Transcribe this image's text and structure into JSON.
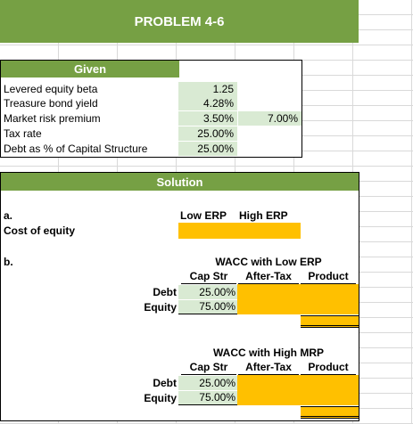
{
  "title": "PROBLEM 4-6",
  "given": {
    "header": "Given",
    "rows": [
      {
        "label": "Levered equity beta",
        "value": "1.25"
      },
      {
        "label": "Treasure bond yield",
        "value": "4.28%"
      },
      {
        "label": "Market risk premium",
        "value": "3.50%",
        "value2": "7.00%"
      },
      {
        "label": "Tax rate",
        "value": "25.00%"
      },
      {
        "label": "Debt as % of Capital Structure",
        "value": "25.00%"
      }
    ]
  },
  "solution": {
    "header": "Solution",
    "part_a": {
      "label": "a.",
      "col1": "Low ERP",
      "col2": "High ERP",
      "row_label": "Cost of equity"
    },
    "part_b": {
      "label": "b.",
      "table1": {
        "title": "WACC with Low ERP",
        "cols": [
          "Cap Str",
          "After-Tax",
          "Product"
        ],
        "rows": [
          {
            "label": "Debt",
            "cap_str": "25.00%"
          },
          {
            "label": "Equity",
            "cap_str": "75.00%"
          }
        ]
      },
      "table2": {
        "title": "WACC with High MRP",
        "cols": [
          "Cap Str",
          "After-Tax",
          "Product"
        ],
        "rows": [
          {
            "label": "Debt",
            "cap_str": "25.00%"
          },
          {
            "label": "Equity",
            "cap_str": "75.00%"
          }
        ]
      }
    }
  },
  "colors": {
    "banner": "#76a044",
    "input_cell": "#d9ead3",
    "output_cell": "#ffc000"
  }
}
